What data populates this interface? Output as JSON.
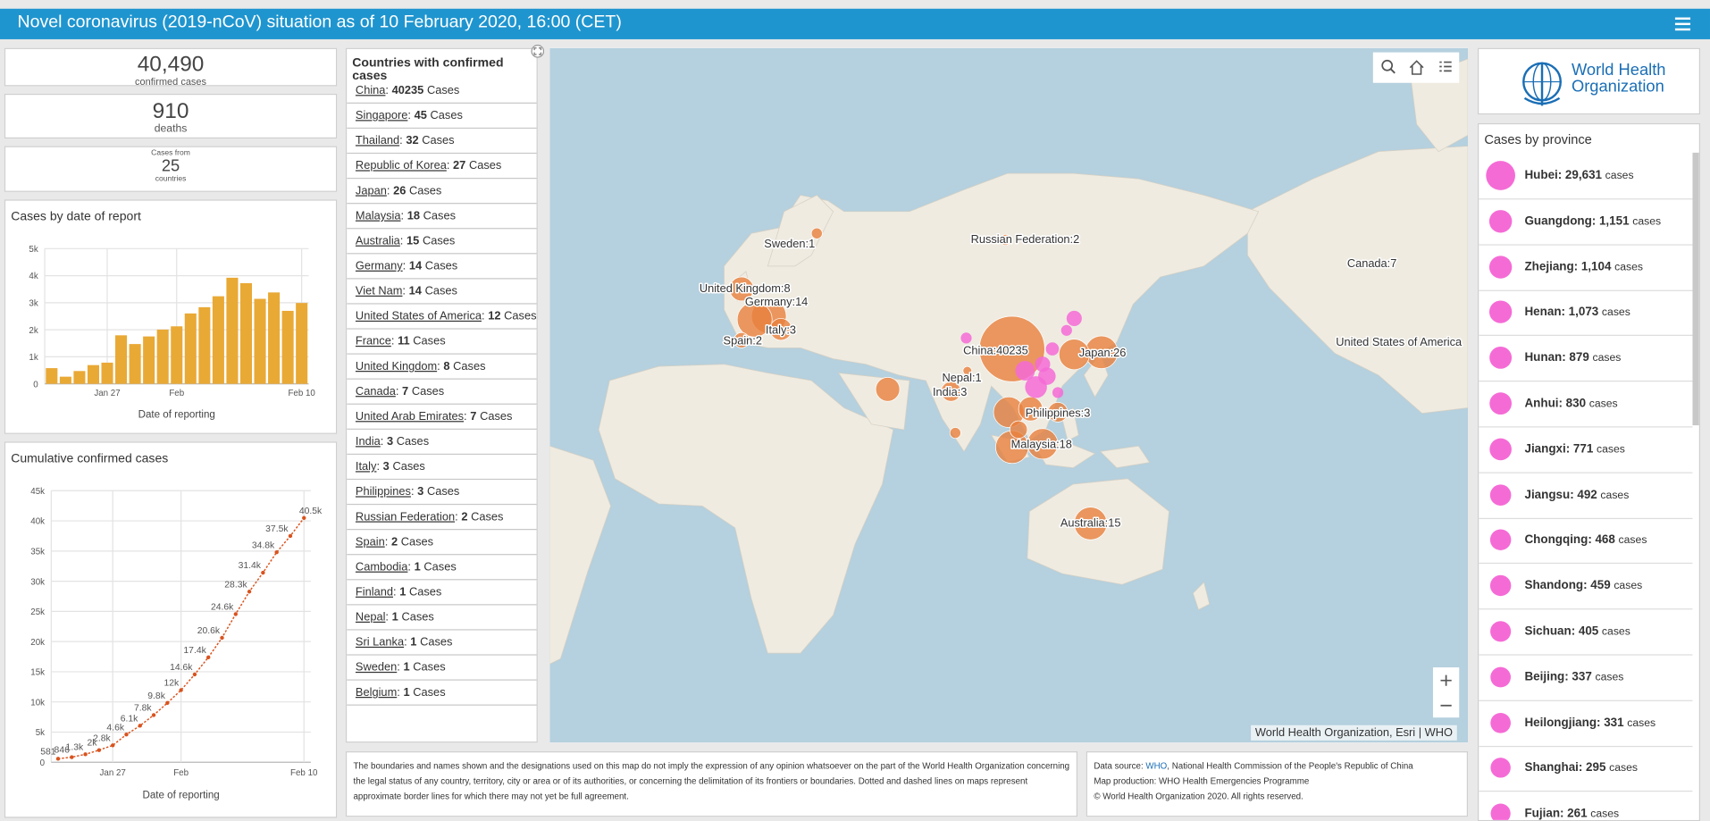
{
  "header": {
    "title": "Novel coronavirus (2019-nCoV) situation as of 10 February 2020, 16:00 (CET)"
  },
  "stats": {
    "confirmed": {
      "value": "40,490",
      "label": "confirmed cases"
    },
    "deaths": {
      "value": "910",
      "label": "deaths"
    },
    "countries": {
      "prefix": "Cases from",
      "value": "25",
      "label": "countries"
    }
  },
  "chart_data": [
    {
      "type": "bar",
      "title": "Cases by date of report",
      "x_label": "Date of reporting",
      "categories": [
        null,
        null,
        null,
        null,
        "Jan 27",
        null,
        null,
        null,
        null,
        "Feb",
        null,
        null,
        null,
        null,
        null,
        null,
        null,
        null,
        "Feb 10"
      ],
      "values": [
        581,
        265,
        474,
        694,
        784,
        1795,
        1472,
        1753,
        2008,
        2127,
        2604,
        2834,
        3239,
        3924,
        3722,
        3144,
        3380,
        2700,
        2990
      ],
      "color": "#e9a935",
      "ylim": [
        0,
        5000
      ],
      "yticks": [
        0,
        {
          "value": 1000,
          "label": "1k"
        },
        {
          "value": 2000,
          "label": "2k"
        },
        {
          "value": 3000,
          "label": "3k"
        },
        {
          "value": 4000,
          "label": "4k"
        },
        {
          "value": 5000,
          "label": "5k"
        }
      ],
      "grid": true
    },
    {
      "type": "line",
      "title": "Cumulative confirmed cases",
      "x_label": "Date of reporting",
      "categories": [
        null,
        null,
        null,
        null,
        "Jan 27",
        null,
        null,
        null,
        null,
        "Feb",
        null,
        null,
        null,
        null,
        null,
        null,
        null,
        null,
        "Feb 10"
      ],
      "values": [
        581,
        846,
        1320,
        2014,
        2798,
        4593,
        6065,
        7818,
        9826,
        11953,
        14557,
        17391,
        20630,
        24554,
        28276,
        31420,
        34800,
        37500,
        40490
      ],
      "value_labels": [
        "581",
        "846",
        "1.3k",
        "2k",
        "2.8k",
        "4.6k",
        "6.1k",
        "7.8k",
        "9.8k",
        "12k",
        "14.6k",
        "17.4k",
        "20.6k",
        "24.6k",
        "28.3k",
        "31.4k",
        "34.8k",
        "37.5k",
        "40.5k"
      ],
      "color": "#d9531e",
      "ylim": [
        0,
        45000
      ],
      "yticks": [
        0,
        {
          "value": 5000,
          "label": "5k"
        },
        {
          "value": 10000,
          "label": "10k"
        },
        {
          "value": 15000,
          "label": "15k"
        },
        {
          "value": 20000,
          "label": "20k"
        },
        {
          "value": 25000,
          "label": "25k"
        },
        {
          "value": 30000,
          "label": "30k"
        },
        {
          "value": 35000,
          "label": "35k"
        },
        {
          "value": 40000,
          "label": "40k"
        },
        {
          "value": 45000,
          "label": "45k"
        }
      ],
      "grid": true
    }
  ],
  "countries": {
    "title": "Countries with confirmed cases",
    "items": [
      {
        "name": "China",
        "punct": ":",
        "count": "40235",
        "unit": "Cases"
      },
      {
        "name": "Singapore",
        "punct": ":",
        "count": "45",
        "unit": "Cases"
      },
      {
        "name": "Thailand",
        "punct": ":",
        "count": "32",
        "unit": "Cases"
      },
      {
        "name": "Republic of Korea",
        "punct": ":",
        "count": "27",
        "unit": "Cases"
      },
      {
        "name": "Japan",
        "punct": ":",
        "count": "26",
        "unit": "Cases"
      },
      {
        "name": "Malaysia",
        "punct": ":",
        "count": "18",
        "unit": "Cases"
      },
      {
        "name": "Australia",
        "punct": ":",
        "count": "15",
        "unit": "Cases"
      },
      {
        "name": "Germany",
        "punct": ":",
        "count": "14",
        "unit": "Cases"
      },
      {
        "name": "Viet Nam",
        "punct": ":",
        "count": "14",
        "unit": "Cases"
      },
      {
        "name": "United States of America",
        "punct": ":",
        "count": "12",
        "unit": "Cases"
      },
      {
        "name": "France",
        "punct": ":",
        "count": "11",
        "unit": "Cases"
      },
      {
        "name": "United Kingdom",
        "punct": ":",
        "count": "8",
        "unit": "Cases"
      },
      {
        "name": "Canada",
        "punct": ":",
        "count": "7",
        "unit": "Cases"
      },
      {
        "name": "United Arab Emirates",
        "punct": ":",
        "count": "7",
        "unit": "Cases"
      },
      {
        "name": "India",
        "punct": ":",
        "count": "3",
        "unit": "Cases"
      },
      {
        "name": "Italy",
        "punct": ":",
        "count": "3",
        "unit": "Cases"
      },
      {
        "name": "Philippines",
        "punct": ":",
        "count": "3",
        "unit": "Cases"
      },
      {
        "name": "Russian Federation",
        "punct": ":",
        "count": "2",
        "unit": "Cases"
      },
      {
        "name": "Spain",
        "punct": ":",
        "count": "2",
        "unit": "Cases"
      },
      {
        "name": "Cambodia",
        "punct": ":",
        "count": "1",
        "unit": "Cases"
      },
      {
        "name": "Finland",
        "punct": ":",
        "count": "1",
        "unit": "Cases"
      },
      {
        "name": "Nepal",
        "punct": ":",
        "count": "1",
        "unit": "Cases"
      },
      {
        "name": "Sri Lanka",
        "punct": ":",
        "count": "1",
        "unit": "Cases"
      },
      {
        "name": "Sweden",
        "punct": ":",
        "count": "1",
        "unit": "Cases"
      },
      {
        "name": "Belgium",
        "punct": ":",
        "count": "1",
        "unit": "Cases"
      }
    ]
  },
  "map": {
    "labels": [
      "Sweden:1",
      "Russian Federation:2",
      "Canada:7",
      "United Kingdom:8",
      "Germany:14",
      "Italy:3",
      "Spain:2",
      "China:40235",
      "Japan:26",
      "Nepal:1",
      "India:3",
      "Philippines:3",
      "Malaysia:18",
      "Australia:15",
      "United States of America"
    ],
    "attribution": "World Health Organization, Esri | WHO"
  },
  "logo": {
    "lines": [
      "World Health",
      "Organization"
    ]
  },
  "provinces": {
    "title": "Cases by province",
    "items": [
      {
        "name": "Hubei:",
        "cases": "29,631",
        "unit": "cases"
      },
      {
        "name": "Guangdong:",
        "cases": "1,151",
        "unit": "cases"
      },
      {
        "name": "Zhejiang:",
        "cases": "1,104",
        "unit": "cases"
      },
      {
        "name": "Henan:",
        "cases": "1,073",
        "unit": "cases"
      },
      {
        "name": "Hunan:",
        "cases": "879",
        "unit": "cases"
      },
      {
        "name": "Anhui:",
        "cases": "830",
        "unit": "cases"
      },
      {
        "name": "Jiangxi:",
        "cases": "771",
        "unit": "cases"
      },
      {
        "name": "Jiangsu:",
        "cases": "492",
        "unit": "cases"
      },
      {
        "name": "Chongqing:",
        "cases": "468",
        "unit": "cases"
      },
      {
        "name": "Shandong:",
        "cases": "459",
        "unit": "cases"
      },
      {
        "name": "Sichuan:",
        "cases": "405",
        "unit": "cases"
      },
      {
        "name": "Beijing:",
        "cases": "337",
        "unit": "cases"
      },
      {
        "name": "Heilongjiang:",
        "cases": "331",
        "unit": "cases"
      },
      {
        "name": "Shanghai:",
        "cases": "295",
        "unit": "cases"
      },
      {
        "name": "Fujian:",
        "cases": "261",
        "unit": "cases"
      }
    ]
  },
  "footer": {
    "disclaimer": "The boundaries and names shown and the designations used on this map do not imply the expression of any opinion whatsoever on the part of the World Health Organization concerning the legal status of any country, territory, city or area or of its authorities, or concerning the delimitation of its frontiers or boundaries. Dotted and dashed lines on maps represent approximate border lines for which there may not yet be full agreement.",
    "source": {
      "prefix": "Data source:",
      "link": "WHO",
      "rest": ", National Health Commission of the People's Republic of China"
    },
    "production": "Map production: WHO Health Emergencies Programme",
    "copyright": "© World Health Organization 2020. All rights reserved."
  }
}
